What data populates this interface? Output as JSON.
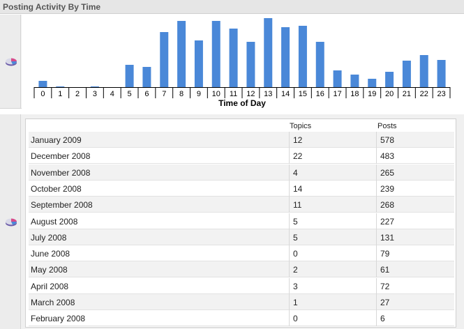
{
  "header": {
    "title": "Posting Activity By Time"
  },
  "icons": {
    "chart_toggle": "pie-chart-icon"
  },
  "chart_data": {
    "type": "bar",
    "xlabel": "Time of Day",
    "ylabel": "",
    "categories": [
      "0",
      "1",
      "2",
      "3",
      "4",
      "5",
      "6",
      "7",
      "8",
      "9",
      "10",
      "11",
      "12",
      "13",
      "14",
      "15",
      "16",
      "17",
      "18",
      "19",
      "20",
      "21",
      "22",
      "23"
    ],
    "values": [
      9,
      1,
      0,
      1,
      0,
      32,
      29,
      79,
      95,
      67,
      95,
      84,
      65,
      99,
      86,
      88,
      65,
      24,
      18,
      12,
      22,
      38,
      46,
      39
    ],
    "bar_color": "#4a88d8",
    "grid": false
  },
  "table": {
    "columns": {
      "topics": "Topics",
      "posts": "Posts"
    },
    "rows": [
      {
        "month": "January 2009",
        "topics": "12",
        "posts": "578"
      },
      {
        "month": "December 2008",
        "topics": "22",
        "posts": "483"
      },
      {
        "month": "November 2008",
        "topics": "4",
        "posts": "265"
      },
      {
        "month": "October 2008",
        "topics": "14",
        "posts": "239"
      },
      {
        "month": "September 2008",
        "topics": "11",
        "posts": "268"
      },
      {
        "month": "August 2008",
        "topics": "5",
        "posts": "227"
      },
      {
        "month": "July 2008",
        "topics": "5",
        "posts": "131"
      },
      {
        "month": "June 2008",
        "topics": "0",
        "posts": "79"
      },
      {
        "month": "May 2008",
        "topics": "2",
        "posts": "61"
      },
      {
        "month": "April 2008",
        "topics": "3",
        "posts": "72"
      },
      {
        "month": "March 2008",
        "topics": "1",
        "posts": "27"
      },
      {
        "month": "February 2008",
        "topics": "0",
        "posts": "6"
      }
    ]
  }
}
